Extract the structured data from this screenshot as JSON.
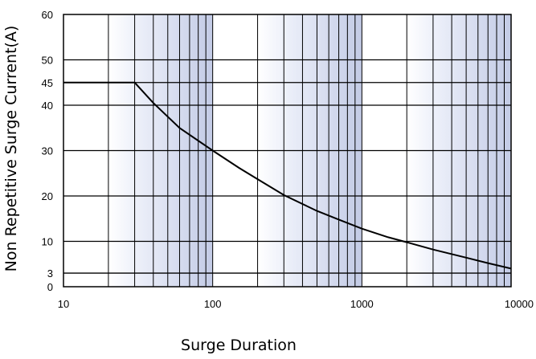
{
  "chart_data": {
    "type": "line",
    "title": "",
    "xlabel": "Surge Duration",
    "ylabel": "Non Repetitive Surge Current(A)",
    "x_scale": "log",
    "xlim": [
      10,
      10000
    ],
    "ylim": [
      0,
      60
    ],
    "x_tick_labels": [
      "10",
      "100",
      "1000",
      "10000"
    ],
    "y_tick_labels": [
      "0",
      "3",
      "10",
      "20",
      "30",
      "40",
      "45",
      "50",
      "60"
    ],
    "grid": true,
    "legend": "none",
    "series": [
      {
        "x": [
          10,
          30,
          40,
          60,
          100,
          150,
          200,
          300,
          500,
          700,
          1000,
          1500,
          2000,
          3000,
          5000,
          7000,
          10000
        ],
        "y": [
          45,
          45,
          40.5,
          35,
          30,
          26.2,
          23.7,
          20.2,
          16.7,
          14.8,
          12.8,
          10.9,
          9.8,
          8.2,
          6.4,
          5.2,
          4.0
        ]
      }
    ],
    "colors": {
      "line": "#000000",
      "grid": "#000000",
      "band_light": "#eef1fa",
      "band_dark": "#c3cbe6"
    }
  }
}
